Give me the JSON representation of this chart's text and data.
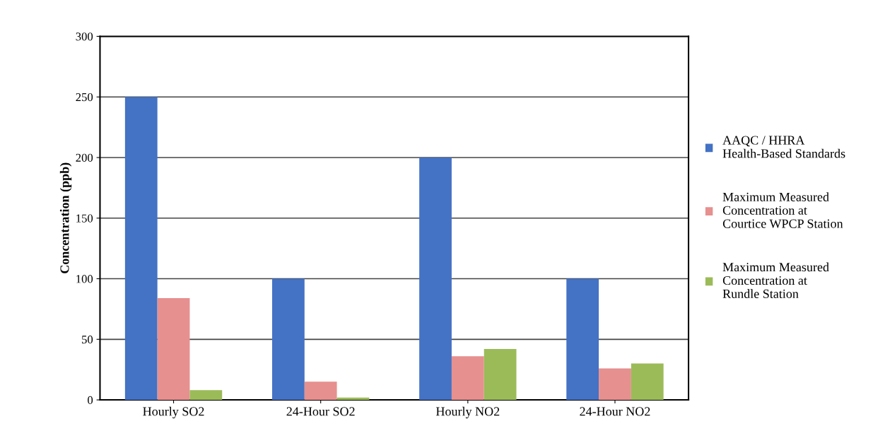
{
  "chart_data": {
    "type": "bar",
    "ylabel": "Concentration (ppb)",
    "categories": [
      "Hourly SO2",
      "24-Hour SO2",
      "Hourly NO2",
      "24-Hour NO2"
    ],
    "series": [
      {
        "name": "AAQC / HHRA Health-Based Standards",
        "color": "#4472c4",
        "values": [
          250,
          100,
          200,
          100
        ]
      },
      {
        "name": "Maximum Measured Concentration at Courtice WPCP Station",
        "color": "#e6908f",
        "values": [
          84,
          15,
          36,
          26
        ]
      },
      {
        "name": "Maximum Measured Concentration at Rundle Station",
        "color": "#9bbb59",
        "values": [
          8,
          2,
          42,
          30
        ]
      }
    ],
    "ylim": [
      0,
      300
    ],
    "yticks": [
      0,
      50,
      100,
      150,
      200,
      250,
      300
    ],
    "grid": "y",
    "legend": "right"
  }
}
